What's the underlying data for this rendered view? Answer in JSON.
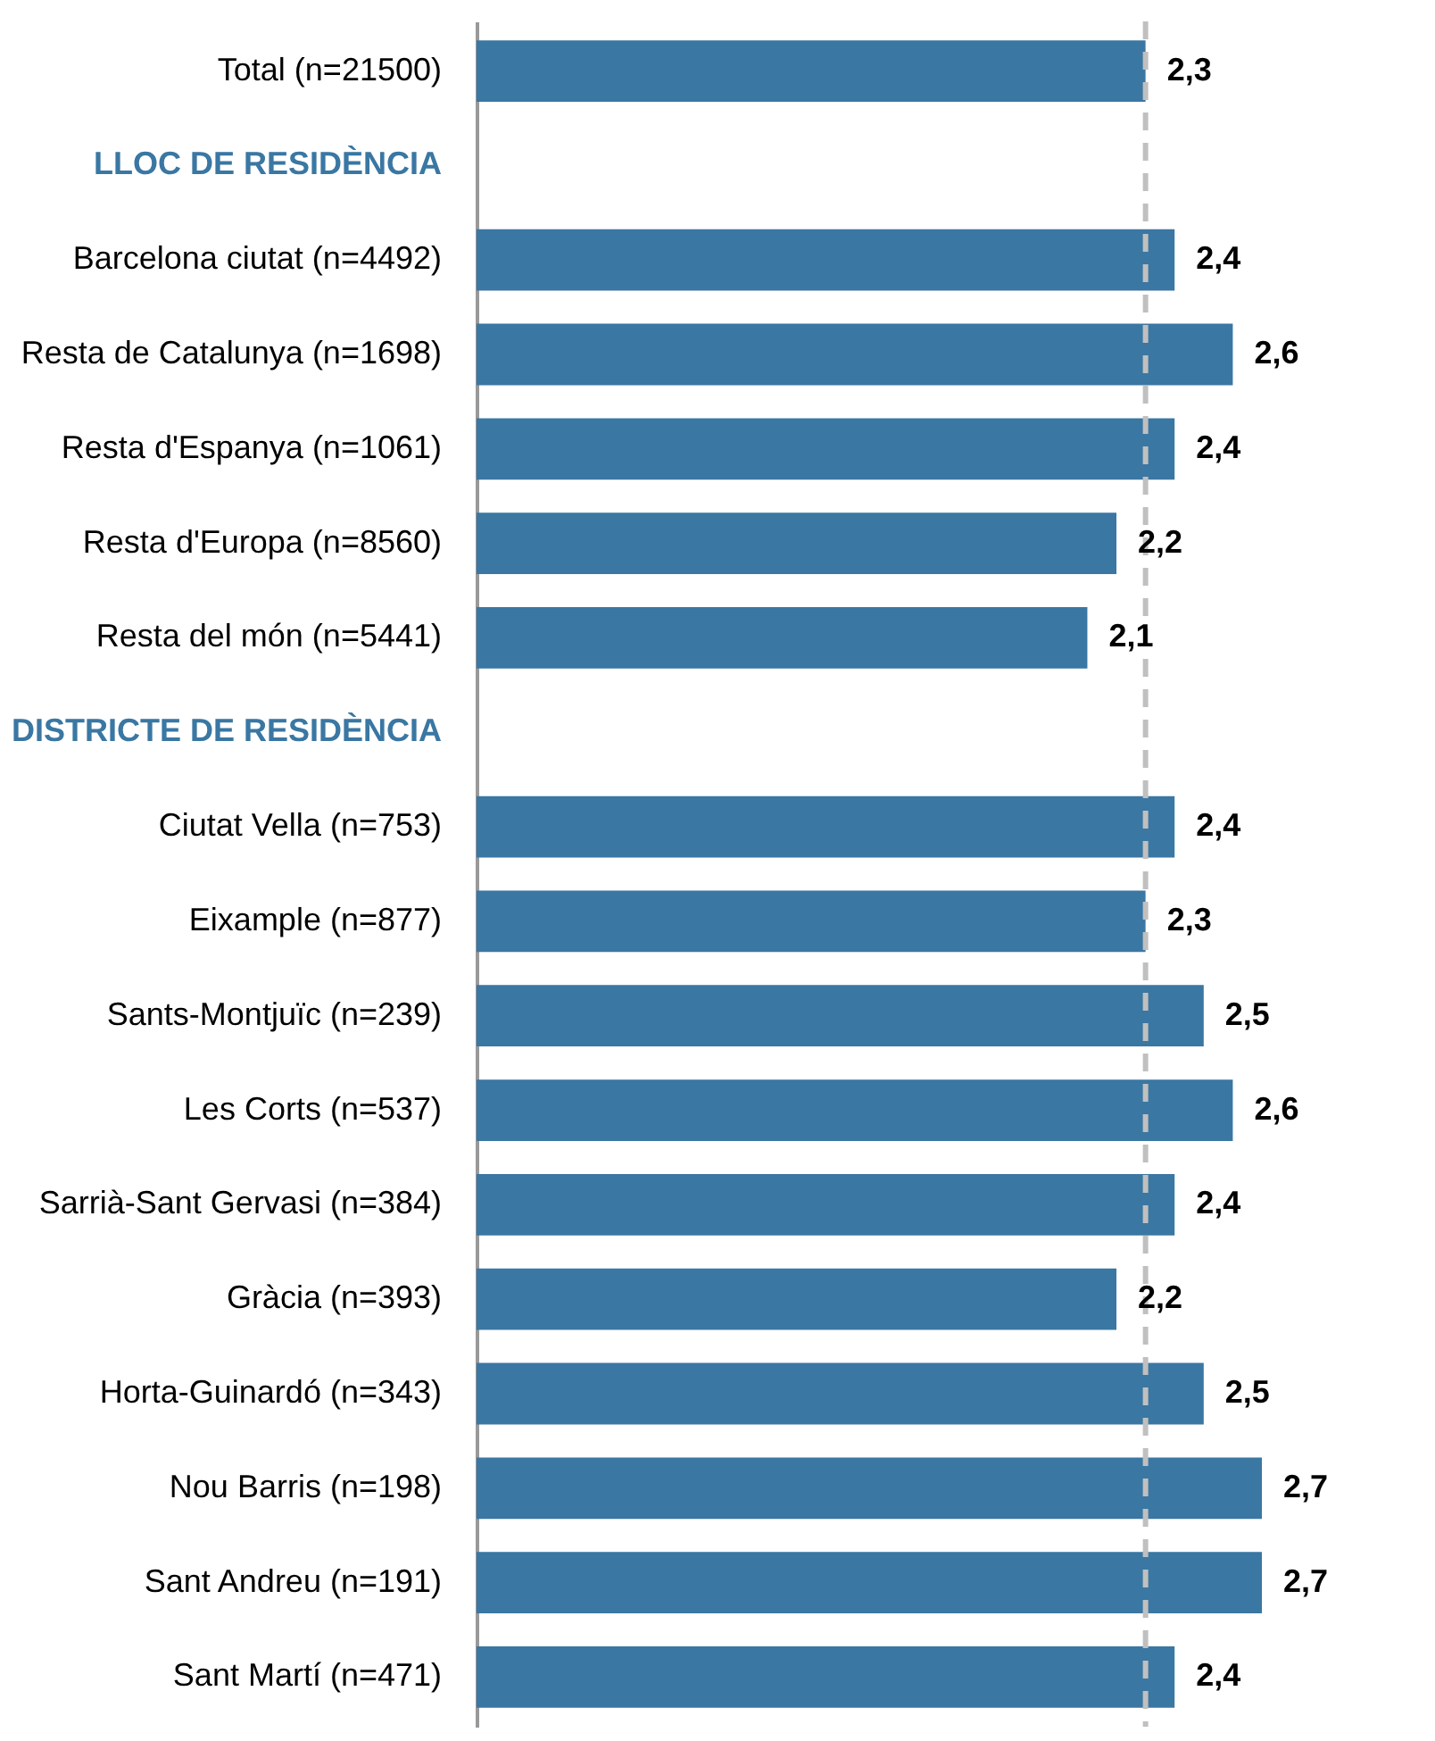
{
  "chart_data": {
    "type": "bar",
    "orientation": "horizontal",
    "categories": [
      "Total (n=21500)",
      "LLOC DE RESIDÈNCIA",
      "Barcelona ciutat (n=4492)",
      "Resta de Catalunya (n=1698)",
      "Resta d'Espanya (n=1061)",
      "Resta d'Europa (n=8560)",
      "Resta del món (n=5441)",
      "DISTRICTE DE RESIDÈNCIA",
      "Ciutat Vella (n=753)",
      "Eixample (n=877)",
      "Sants-Montjuïc (n=239)",
      "Les Corts (n=537)",
      "Sarrià-Sant Gervasi (n=384)",
      "Gràcia (n=393)",
      "Horta-Guinardó (n=343)",
      "Nou Barris (n=198)",
      "Sant Andreu (n=191)",
      "Sant Martí (n=471)"
    ],
    "values": [
      2.3,
      null,
      2.4,
      2.6,
      2.4,
      2.2,
      2.1,
      null,
      2.4,
      2.3,
      2.5,
      2.6,
      2.4,
      2.2,
      2.5,
      2.7,
      2.7,
      2.4
    ],
    "value_labels": [
      "2,3",
      null,
      "2,4",
      "2,6",
      "2,4",
      "2,2",
      "2,1",
      null,
      "2,4",
      "2,3",
      "2,5",
      "2,6",
      "2,4",
      "2,2",
      "2,5",
      "2,7",
      "2,7",
      "2,4"
    ],
    "color": "#3a77a3",
    "grid": false,
    "ref_lines": [
      {
        "axis": "x",
        "value": 2.3,
        "label": null,
        "color": "#c0c0c0",
        "line_style": "dashed"
      }
    ]
  }
}
